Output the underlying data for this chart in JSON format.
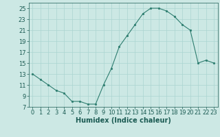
{
  "x": [
    0,
    1,
    2,
    3,
    4,
    5,
    6,
    7,
    8,
    9,
    10,
    11,
    12,
    13,
    14,
    15,
    16,
    17,
    18,
    19,
    20,
    21,
    22,
    23
  ],
  "y": [
    13,
    12,
    11,
    10,
    9.5,
    8,
    8,
    7.5,
    7.5,
    11,
    14,
    18,
    20,
    22,
    24,
    25,
    25,
    24.5,
    23.5,
    22,
    21,
    15,
    15.5,
    15
  ],
  "line_color": "#2d7d6f",
  "marker_color": "#2d7d6f",
  "bg_color": "#cce8e4",
  "grid_color_major": "#aad4d0",
  "grid_color_minor": "#bbdcda",
  "xlabel": "Humidex (Indice chaleur)",
  "xlim": [
    -0.5,
    23.5
  ],
  "ylim": [
    7,
    26
  ],
  "yticks": [
    7,
    9,
    11,
    13,
    15,
    17,
    19,
    21,
    23,
    25
  ],
  "xticks": [
    0,
    1,
    2,
    3,
    4,
    5,
    6,
    7,
    8,
    9,
    10,
    11,
    12,
    13,
    14,
    15,
    16,
    17,
    18,
    19,
    20,
    21,
    22,
    23
  ],
  "label_color": "#1a5a52",
  "tick_color": "#1a5a52",
  "xlabel_fontsize": 7,
  "tick_fontsize": 6,
  "linewidth": 0.8,
  "markersize": 2.0
}
